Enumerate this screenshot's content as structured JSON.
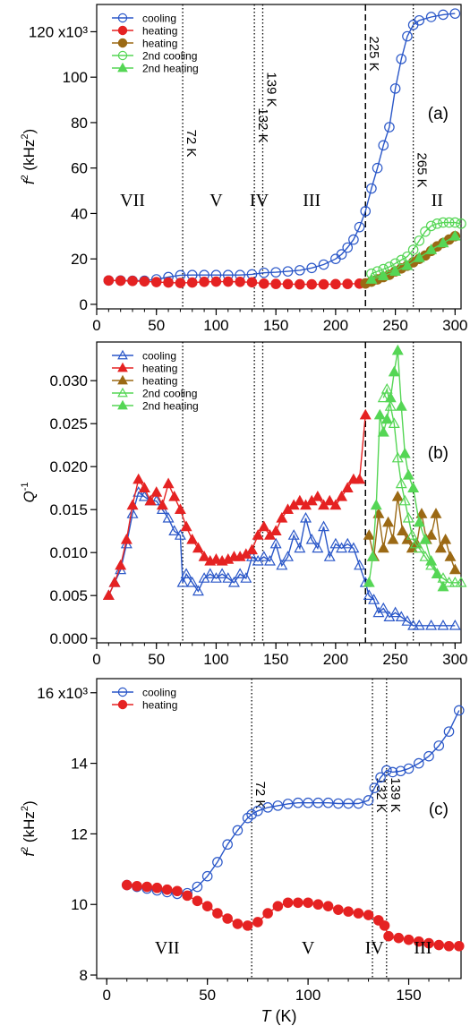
{
  "chart_data": [
    {
      "type": "scatter",
      "panel_label": "(a)",
      "ylabel": "f² (kHz²)",
      "ylabel_base": "f",
      "ylabel_sup": "2",
      "ylabel_unit_pre": " (kHz",
      "ylabel_unit_post": ")",
      "xlabel": "",
      "xlim": [
        0,
        305
      ],
      "ylim": [
        -2,
        132
      ],
      "x_ticks": [
        0,
        50,
        100,
        150,
        200,
        250,
        300
      ],
      "y_ticks": [
        0,
        20,
        40,
        60,
        80,
        100
      ],
      "y_tick_labels": [
        "0",
        "20",
        "40",
        "60",
        "80",
        "100"
      ],
      "y_top_label": "120 x10³",
      "y_top_value": 120,
      "legend_position": "top-left",
      "vlines": [
        {
          "x": 72,
          "label": "72 K",
          "style": "dotted"
        },
        {
          "x": 132,
          "label": "132 K",
          "style": "dotted"
        },
        {
          "x": 139,
          "label": "139 K",
          "style": "dotted"
        },
        {
          "x": 225,
          "label": "225 K",
          "style": "dashed"
        },
        {
          "x": 265,
          "label": "265 K",
          "style": "dotted"
        }
      ],
      "phase_labels": [
        {
          "text": "VII",
          "x": 30
        },
        {
          "text": "V",
          "x": 100
        },
        {
          "text": "IV",
          "x": 136
        },
        {
          "text": "III",
          "x": 180
        },
        {
          "text": "II",
          "x": 285
        }
      ],
      "series": [
        {
          "name": "cooling",
          "color": "#2a57c8",
          "marker": "circle-open",
          "x": [
            10,
            20,
            30,
            40,
            50,
            60,
            70,
            80,
            90,
            100,
            110,
            120,
            130,
            140,
            150,
            160,
            170,
            180,
            190,
            200,
            205,
            210,
            215,
            220,
            225,
            230,
            235,
            240,
            245,
            250,
            255,
            260,
            265,
            270,
            280,
            290,
            300
          ],
          "y": [
            10.5,
            10.5,
            10.4,
            10.4,
            11.0,
            12.0,
            12.8,
            12.9,
            12.9,
            12.9,
            12.9,
            12.9,
            13.2,
            13.9,
            14.1,
            14.5,
            15.0,
            16.0,
            17.5,
            20.0,
            22.0,
            25.0,
            28.5,
            34.0,
            41.0,
            51.0,
            60.0,
            70.0,
            78.0,
            95.0,
            108.0,
            118.0,
            123.0,
            125.0,
            126.5,
            127.5,
            128.0
          ]
        },
        {
          "name": "heating",
          "color": "#e52222",
          "marker": "circle-filled",
          "x": [
            10,
            20,
            30,
            40,
            50,
            60,
            70,
            80,
            90,
            100,
            110,
            120,
            130,
            140,
            150,
            160,
            170,
            180,
            190,
            200,
            210,
            220,
            225
          ],
          "y": [
            10.5,
            10.4,
            10.3,
            10.1,
            9.8,
            9.6,
            9.4,
            9.6,
            9.9,
            10.0,
            10.0,
            9.9,
            9.7,
            9.1,
            9.0,
            8.9,
            8.8,
            8.8,
            8.8,
            8.9,
            9.0,
            9.1,
            9.2
          ]
        },
        {
          "name": "heating",
          "color": "#9b6914",
          "marker": "circle-filled",
          "x": [
            225,
            230,
            235,
            240,
            245,
            250,
            255,
            260,
            265,
            270,
            275,
            280,
            285,
            290,
            295,
            300
          ],
          "y": [
            9.2,
            10.0,
            11.0,
            12.0,
            13.0,
            14.5,
            15.8,
            17.0,
            18.5,
            20.0,
            21.5,
            23.5,
            25.5,
            27.0,
            28.5,
            30.0
          ]
        },
        {
          "name": "2nd cooling",
          "color": "#55d655",
          "marker": "circle-open",
          "x": [
            230,
            235,
            240,
            245,
            250,
            255,
            260,
            265,
            270,
            275,
            280,
            285,
            290,
            295,
            300,
            305
          ],
          "y": [
            13.5,
            14.5,
            15.5,
            16.5,
            18.0,
            19.5,
            21.0,
            24.0,
            28.0,
            32.0,
            34.5,
            35.5,
            36.0,
            36.0,
            36.0,
            35.5
          ]
        },
        {
          "name": "2nd heating",
          "color": "#55d655",
          "marker": "triangle-filled",
          "x": [
            230,
            240,
            250,
            260,
            270,
            280,
            290,
            300
          ],
          "y": [
            11.0,
            12.5,
            14.5,
            17.0,
            20.5,
            24.0,
            27.0,
            30.0
          ]
        }
      ]
    },
    {
      "type": "line",
      "panel_label": "(b)",
      "ylabel": "Q⁻¹",
      "ylabel_base": "Q",
      "ylabel_sup": "-1",
      "xlabel": "",
      "xlim": [
        0,
        305
      ],
      "ylim": [
        -0.0005,
        0.0345
      ],
      "x_ticks": [
        0,
        50,
        100,
        150,
        200,
        250,
        300
      ],
      "y_ticks": [
        0.0,
        0.005,
        0.01,
        0.015,
        0.02,
        0.025,
        0.03
      ],
      "y_tick_labels": [
        "0.000",
        "0.005",
        "0.010",
        "0.015",
        "0.020",
        "0.025",
        "0.030"
      ],
      "legend_position": "top-left",
      "vlines": [
        {
          "x": 72,
          "style": "dotted"
        },
        {
          "x": 132,
          "style": "dotted"
        },
        {
          "x": 139,
          "style": "dotted"
        },
        {
          "x": 225,
          "style": "dashed"
        },
        {
          "x": 265,
          "style": "dotted"
        }
      ],
      "series": [
        {
          "name": "cooling",
          "color": "#2a57c8",
          "marker": "triangle-open",
          "x": [
            10,
            15,
            20,
            25,
            30,
            35,
            40,
            45,
            50,
            55,
            60,
            65,
            70,
            72,
            75,
            80,
            85,
            90,
            95,
            100,
            105,
            110,
            115,
            120,
            125,
            130,
            135,
            140,
            145,
            150,
            155,
            160,
            165,
            170,
            175,
            180,
            185,
            190,
            195,
            200,
            205,
            210,
            215,
            220,
            225,
            228,
            232,
            236,
            240,
            245,
            250,
            255,
            260,
            265,
            270,
            280,
            290,
            300
          ],
          "y": [
            0.005,
            0.0065,
            0.008,
            0.011,
            0.0145,
            0.017,
            0.0165,
            0.016,
            0.016,
            0.015,
            0.014,
            0.0125,
            0.012,
            0.0065,
            0.0075,
            0.0065,
            0.0055,
            0.007,
            0.0075,
            0.007,
            0.0075,
            0.007,
            0.0065,
            0.0075,
            0.007,
            0.0095,
            0.009,
            0.0095,
            0.009,
            0.011,
            0.0085,
            0.0095,
            0.012,
            0.0105,
            0.014,
            0.0115,
            0.0105,
            0.013,
            0.0095,
            0.011,
            0.0105,
            0.011,
            0.0105,
            0.0085,
            0.0065,
            0.005,
            0.0045,
            0.003,
            0.0035,
            0.0025,
            0.003,
            0.0025,
            0.002,
            0.0015,
            0.0015,
            0.0015,
            0.0015,
            0.0015
          ]
        },
        {
          "name": "heating",
          "color": "#e52222",
          "marker": "triangle-filled",
          "x": [
            10,
            15,
            20,
            25,
            30,
            35,
            40,
            45,
            50,
            55,
            60,
            65,
            70,
            75,
            80,
            85,
            90,
            95,
            100,
            105,
            110,
            115,
            120,
            125,
            130,
            135,
            140,
            145,
            150,
            155,
            160,
            165,
            170,
            175,
            180,
            185,
            190,
            195,
            200,
            205,
            210,
            215,
            220,
            225
          ],
          "y": [
            0.005,
            0.0065,
            0.0085,
            0.0115,
            0.0155,
            0.0185,
            0.0175,
            0.016,
            0.017,
            0.0155,
            0.018,
            0.0165,
            0.015,
            0.013,
            0.0115,
            0.0105,
            0.0095,
            0.009,
            0.0092,
            0.009,
            0.0092,
            0.0095,
            0.0095,
            0.0098,
            0.0103,
            0.012,
            0.013,
            0.012,
            0.0125,
            0.014,
            0.015,
            0.0155,
            0.016,
            0.0155,
            0.016,
            0.0165,
            0.0155,
            0.016,
            0.0155,
            0.0165,
            0.0175,
            0.0185,
            0.0185,
            0.026
          ]
        },
        {
          "name": "heating",
          "color": "#9b6914",
          "marker": "triangle-filled",
          "x": [
            228,
            232,
            236,
            240,
            244,
            248,
            252,
            256,
            260,
            264,
            268,
            272,
            276,
            280,
            284,
            288,
            292,
            296,
            300
          ],
          "y": [
            0.012,
            0.0095,
            0.0145,
            0.0105,
            0.0135,
            0.0115,
            0.0165,
            0.0125,
            0.0115,
            0.0105,
            0.011,
            0.0145,
            0.0115,
            0.012,
            0.0145,
            0.0105,
            0.0115,
            0.0095,
            0.008
          ]
        },
        {
          "name": "2nd cooling",
          "color": "#55d655",
          "marker": "triangle-open",
          "x": [
            240,
            243,
            246,
            249,
            252,
            255,
            258,
            261,
            264,
            267,
            270,
            275,
            280,
            285,
            290,
            295,
            300,
            305
          ],
          "y": [
            0.028,
            0.029,
            0.027,
            0.025,
            0.021,
            0.018,
            0.016,
            0.014,
            0.012,
            0.011,
            0.0105,
            0.0095,
            0.0085,
            0.0075,
            0.007,
            0.0065,
            0.0065,
            0.0065
          ]
        },
        {
          "name": "2nd heating",
          "color": "#55d655",
          "marker": "triangle-filled",
          "x": [
            228,
            231,
            234,
            237,
            240,
            243,
            246,
            249,
            252,
            255,
            258,
            261,
            265,
            270,
            275,
            280,
            285,
            290
          ],
          "y": [
            0.0065,
            0.0095,
            0.0155,
            0.026,
            0.024,
            0.0255,
            0.028,
            0.031,
            0.0335,
            0.027,
            0.0215,
            0.019,
            0.0175,
            0.0135,
            0.0115,
            0.009,
            0.0075,
            0.006
          ]
        }
      ]
    },
    {
      "type": "scatter",
      "panel_label": "(c)",
      "ylabel": "f² (kHz²)",
      "ylabel_base": "f",
      "ylabel_sup": "2",
      "ylabel_unit_pre": " (kHz",
      "ylabel_unit_post": ")",
      "xlabel": "T (K)",
      "xlabel_italic": "T",
      "xlabel_unit": " (K)",
      "xlim": [
        -5,
        176
      ],
      "ylim": [
        7.9,
        16.4
      ],
      "x_ticks": [
        0,
        50,
        100,
        150
      ],
      "y_ticks": [
        8,
        10,
        12,
        14
      ],
      "y_tick_labels": [
        "8",
        "10",
        "12",
        "14"
      ],
      "y_top_label": "16 x10³",
      "y_top_value": 16,
      "legend_position": "top-left",
      "vlines": [
        {
          "x": 72,
          "label": "72 K",
          "style": "dotted"
        },
        {
          "x": 132,
          "label": "132 K",
          "style": "dotted"
        },
        {
          "x": 139,
          "label": "139 K",
          "style": "dotted"
        }
      ],
      "phase_labels": [
        {
          "text": "VII",
          "x": 30
        },
        {
          "text": "V",
          "x": 100
        },
        {
          "text": "IV",
          "x": 133
        },
        {
          "text": "III",
          "x": 157
        }
      ],
      "series": [
        {
          "name": "cooling",
          "color": "#2a57c8",
          "marker": "circle-open",
          "x": [
            10,
            15,
            20,
            25,
            30,
            35,
            40,
            45,
            50,
            55,
            60,
            65,
            70,
            72,
            75,
            80,
            85,
            90,
            95,
            100,
            105,
            110,
            115,
            120,
            125,
            130,
            133,
            136,
            139,
            142,
            146,
            150,
            155,
            160,
            165,
            170,
            175
          ],
          "y": [
            10.55,
            10.5,
            10.45,
            10.4,
            10.35,
            10.3,
            10.32,
            10.5,
            10.8,
            11.2,
            11.7,
            12.1,
            12.45,
            12.55,
            12.65,
            12.75,
            12.8,
            12.85,
            12.88,
            12.88,
            12.88,
            12.88,
            12.86,
            12.86,
            12.86,
            12.95,
            13.3,
            13.6,
            13.8,
            13.75,
            13.78,
            13.85,
            14.0,
            14.2,
            14.5,
            14.9,
            15.5
          ]
        },
        {
          "name": "heating",
          "color": "#e52222",
          "marker": "circle-filled",
          "x": [
            10,
            15,
            20,
            25,
            30,
            35,
            40,
            45,
            50,
            55,
            60,
            65,
            70,
            75,
            80,
            85,
            90,
            95,
            100,
            105,
            110,
            115,
            120,
            125,
            130,
            135,
            138,
            140,
            145,
            150,
            155,
            160,
            165,
            170,
            175
          ],
          "y": [
            10.55,
            10.52,
            10.5,
            10.47,
            10.42,
            10.38,
            10.25,
            10.1,
            9.95,
            9.75,
            9.6,
            9.45,
            9.4,
            9.5,
            9.75,
            9.95,
            10.05,
            10.05,
            10.05,
            10.0,
            9.95,
            9.85,
            9.8,
            9.75,
            9.7,
            9.55,
            9.4,
            9.1,
            9.05,
            9.0,
            8.95,
            8.9,
            8.85,
            8.82,
            8.82
          ]
        }
      ]
    }
  ]
}
